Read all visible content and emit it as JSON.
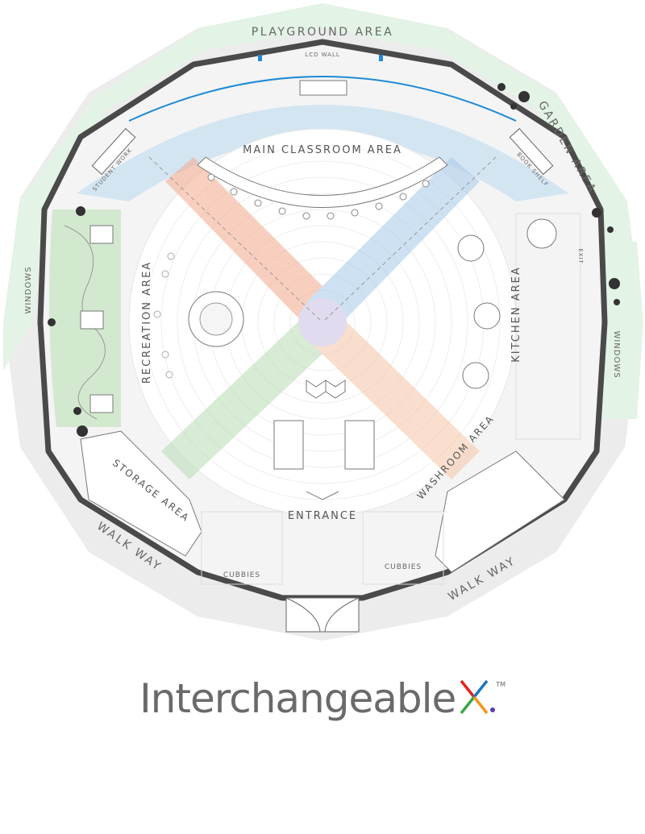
{
  "labels": {
    "playground": "PLAYGROUND AREA",
    "lcd_wall": "LCD WALL",
    "garden": "GARDEN AREA",
    "windows_left": "WINDOWS",
    "windows_right": "WINDOWS",
    "main_classroom": "MAIN CLASSROOM AREA",
    "recreation": "RECREATION AREA",
    "kitchen": "KITCHEN AREA",
    "washroom": "WASHROOM AREA",
    "entrance": "ENTRANCE",
    "storage": "STORAGE AREA",
    "walkway_left": "WALK WAY",
    "walkway_right": "WALK WAY",
    "cubbies_left": "CUBBIES",
    "cubbies_right": "CUBBIES",
    "student_work": "STUDENT WORK",
    "book_shelf": "BOOK SHELF",
    "exit": "EXIT"
  },
  "brand": {
    "name": "Interchangeable",
    "trademark": "TM"
  },
  "colors": {
    "zone_green": "#e6f4e8",
    "zone_blue": "#cfe3f2",
    "zone_orange": "#f7c9b3",
    "zone_green_band": "#cfe6cf",
    "zone_purple": "#d6cfea",
    "wall": "#4a4a4a",
    "lcd_blue": "#1f8ad6",
    "x_red": "#e2231a",
    "x_blue": "#1b75bb",
    "x_green": "#3aa54a",
    "x_orange": "#f7941d"
  }
}
